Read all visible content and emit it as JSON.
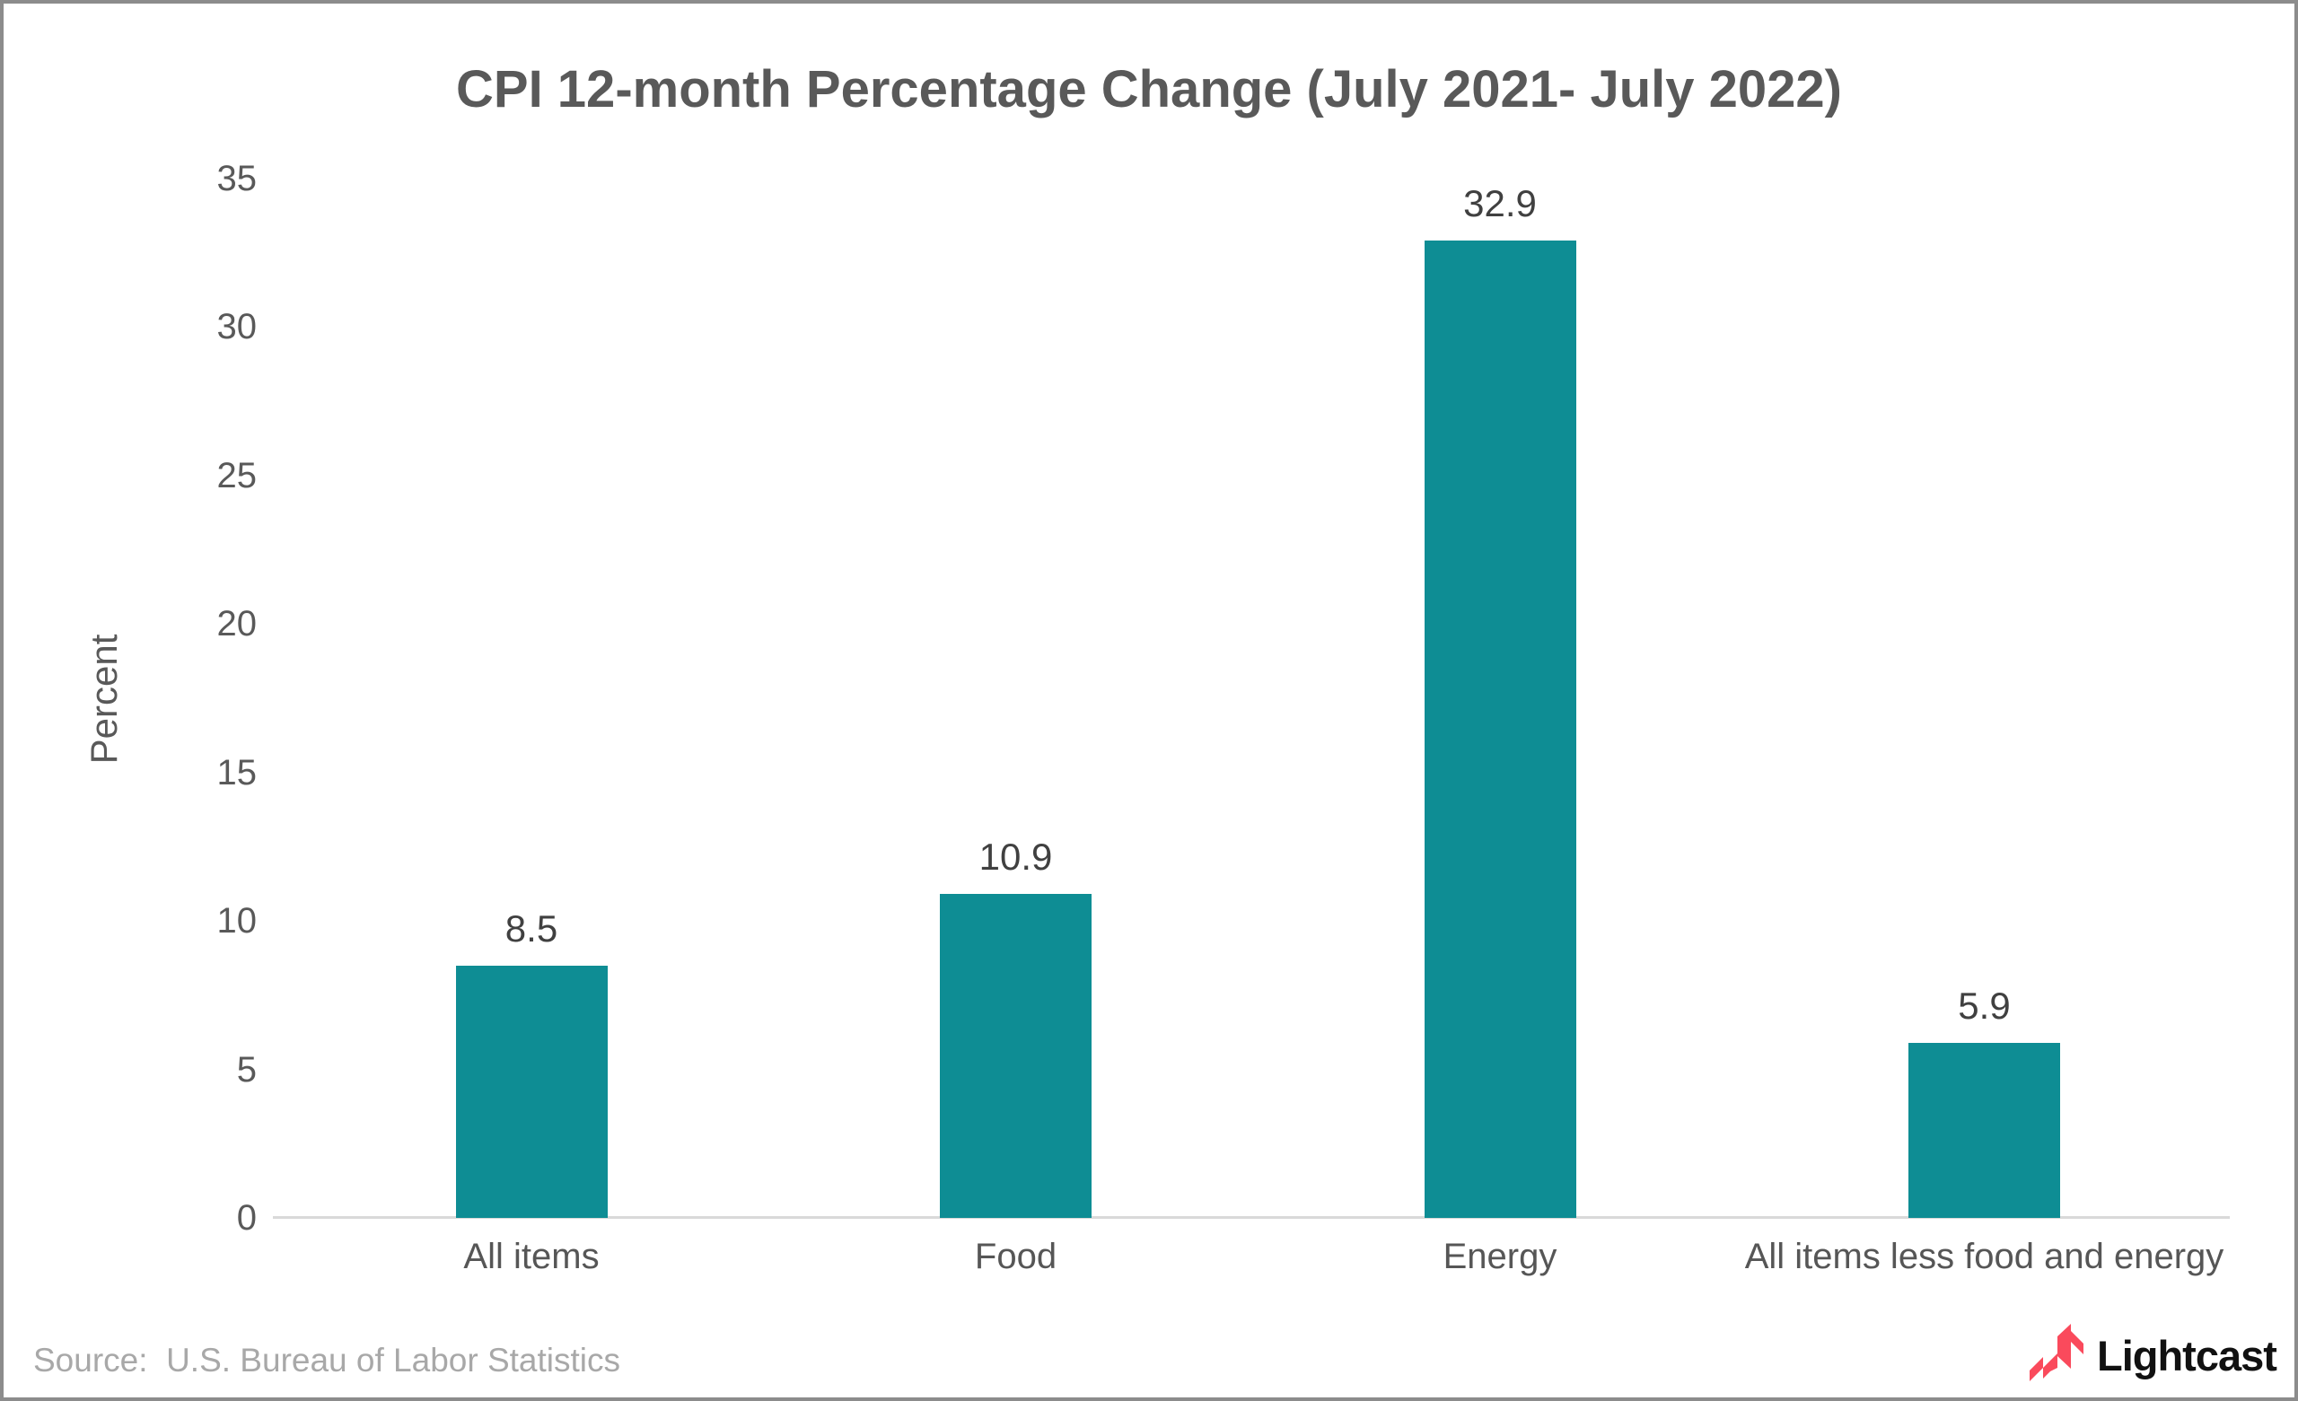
{
  "chart_data": {
    "type": "bar",
    "title": "CPI 12-month Percentage Change (July 2021- July 2022)",
    "categories": [
      "All items",
      "Food",
      "Energy",
      "All items less food and energy"
    ],
    "values": [
      8.5,
      10.9,
      32.9,
      5.9
    ],
    "value_labels": [
      "8.5",
      "10.9",
      "32.9",
      "5.9"
    ],
    "xlabel": "",
    "ylabel": "Percent",
    "ylim": [
      0,
      35
    ],
    "yticks": [
      0,
      5,
      10,
      15,
      20,
      25,
      30,
      35
    ],
    "grid": false,
    "legend_position": "none",
    "bar_color": "#0e8d94",
    "value_label_color": "#404040",
    "tick_label_color": "#595959",
    "category_label_color": "#565656",
    "title_color": "#595959",
    "axis_line_color": "#d9d9d9"
  },
  "footer": {
    "source": "Source:  U.S. Bureau of Labor Statistics",
    "logo_text": "Lightcast",
    "logo_mark_color": "#fa4a5c",
    "logo_text_color": "#111111"
  },
  "frame": {
    "border_color": "#8c8c8c",
    "background_color": "#ffffff"
  }
}
